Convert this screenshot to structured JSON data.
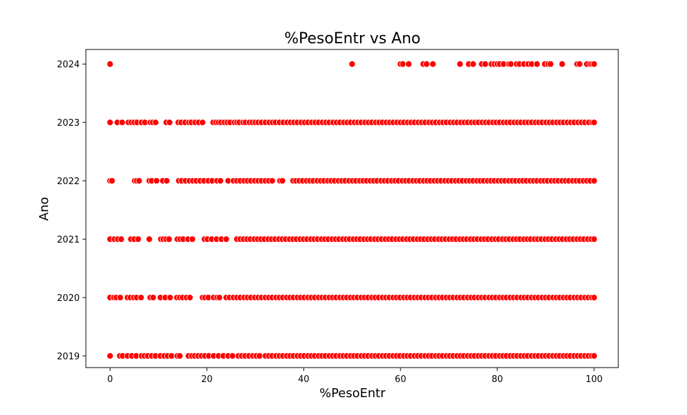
{
  "chart_data": {
    "type": "scatter",
    "title": "%PesoEntr vs Ano",
    "xlabel": "%PesoEntr",
    "ylabel": "Ano",
    "xlim": [
      -5,
      105
    ],
    "ylim": [
      2018.8,
      2024.25
    ],
    "xticks": [
      0,
      20,
      40,
      60,
      80,
      100
    ],
    "yticks": [
      2019,
      2020,
      2021,
      2022,
      2023,
      2024
    ],
    "grid": false,
    "legend": "none",
    "marker_color": "#ff0000",
    "marker_edge_color": "#ffffff",
    "series": [
      {
        "y": 2024,
        "x": [
          0,
          50,
          60,
          60.5,
          61.7,
          64.7,
          65.4,
          66.7,
          72.3,
          74.1,
          75,
          76.8,
          77.5,
          78.8,
          79.4,
          80,
          80.5,
          81.3,
          82.4,
          82.8,
          84,
          84.6,
          85.5,
          86.4,
          87.1,
          88.2,
          89.8,
          90.5,
          91,
          93.4,
          96.5,
          97,
          98.5,
          99.2,
          99.6,
          100
        ]
      },
      {
        "y": 2023,
        "x": [
          0,
          1.5,
          2.5,
          3.8,
          4.4,
          5,
          5.6,
          6.5,
          7.2,
          8.3,
          8.8,
          9.4,
          11.6,
          12.3,
          14.1,
          14.7,
          15.5,
          16.3,
          16.8,
          17.6,
          18.3,
          19.1,
          21.3,
          21.9,
          22.4,
          22.9,
          23.6,
          24.2,
          24.8,
          25.7,
          26.2,
          26.7,
          27.5,
          28,
          28.8,
          29.4,
          30,
          30.6,
          31.3,
          32.1,
          32.9,
          33.6,
          34.2,
          35,
          35.8,
          36.6,
          37.3,
          38,
          38.7,
          39.5,
          40.2,
          40.9,
          41.7,
          42.4,
          43.1,
          43.9,
          44.6,
          45.3,
          46.1,
          46.8,
          47.5,
          48.3,
          49,
          49.7,
          50.5,
          51.2,
          51.9,
          52.7,
          53.4,
          54.1,
          54.9,
          55.6,
          56.3,
          57.1,
          57.8,
          58.5,
          59.3,
          60,
          60.7,
          61.5,
          62.2,
          62.9,
          63.7,
          64.4,
          65.1,
          65.9,
          66.6,
          67.3,
          68.1,
          68.8,
          69.5,
          70.3,
          71,
          71.7,
          72.5,
          73.2,
          73.9,
          74.7,
          75.4,
          76.1,
          76.9,
          77.6,
          78.3,
          79.1,
          79.8,
          80.5,
          81.3,
          82,
          82.7,
          83.5,
          84.2,
          84.9,
          85.7,
          86.4,
          87.1,
          87.9,
          88.6,
          89.3,
          90.1,
          90.8,
          91.5,
          92.3,
          93,
          93.7,
          94.5,
          95.2,
          95.9,
          96.7,
          97.4,
          98.1,
          98.9,
          99.6,
          100
        ]
      },
      {
        "y": 2022,
        "x": [
          0,
          0.4,
          5.1,
          5.5,
          6,
          8.1,
          8.6,
          9.6,
          10.9,
          11.7,
          14.2,
          14.8,
          15.6,
          16.4,
          17.1,
          17.8,
          18.6,
          19.4,
          20.3,
          21.1,
          22.1,
          22.8,
          24.4,
          25.5,
          26.2,
          26.9,
          27.7,
          28.4,
          29.1,
          29.9,
          30.6,
          31.3,
          32.1,
          32.8,
          33.5,
          35.1,
          35.6,
          37.8,
          38.4,
          39.1,
          39.8,
          40.6,
          41.3,
          42,
          42.8,
          43.5,
          44.2,
          45,
          45.7,
          46.4,
          47.2,
          47.9,
          48.6,
          49.4,
          50.1,
          50.8,
          51.6,
          52.3,
          53,
          53.8,
          54.5,
          55.2,
          56,
          56.7,
          57.4,
          58.2,
          58.9,
          59.6,
          60.4,
          61.1,
          61.8,
          62.6,
          63.3,
          64,
          64.8,
          65.5,
          66.2,
          67,
          67.7,
          68.4,
          69.2,
          69.9,
          70.6,
          71.4,
          72.1,
          72.8,
          73.6,
          74.3,
          75,
          75.8,
          76.5,
          77.2,
          78,
          78.7,
          79.4,
          80.2,
          80.9,
          81.6,
          82.4,
          83.1,
          83.8,
          84.6,
          85.3,
          86,
          86.8,
          87.5,
          88.2,
          89,
          89.7,
          90.4,
          91.2,
          91.9,
          92.6,
          93.4,
          94.1,
          94.8,
          95.6,
          96.3,
          97,
          97.8,
          98.5,
          99.2,
          100
        ]
      },
      {
        "y": 2021,
        "x": [
          0,
          0.9,
          1.6,
          2.3,
          4.3,
          5,
          5.8,
          8.1,
          10.5,
          11,
          11.6,
          12.2,
          13.9,
          14.5,
          15.1,
          16.1,
          17,
          19.5,
          20.1,
          21,
          22,
          23,
          24,
          26.2,
          26.9,
          27.6,
          28.3,
          29,
          29.8,
          30.5,
          31.2,
          31.9,
          32.7,
          33.4,
          34.1,
          34.9,
          35.6,
          36.3,
          37.1,
          37.8,
          38.5,
          39.3,
          40,
          40.7,
          41.5,
          42.2,
          42.9,
          43.7,
          44.4,
          45.1,
          45.9,
          46.6,
          47.3,
          48.1,
          48.8,
          49.5,
          50.3,
          51,
          51.7,
          52.5,
          53.2,
          53.9,
          54.7,
          55.4,
          56.1,
          56.9,
          57.6,
          58.3,
          59.1,
          59.8,
          60.5,
          61.3,
          62,
          62.7,
          63.5,
          64.2,
          64.9,
          65.7,
          66.4,
          67.1,
          67.9,
          68.6,
          69.3,
          70.1,
          70.8,
          71.5,
          72.3,
          73,
          73.7,
          74.5,
          75.2,
          75.9,
          76.7,
          77.4,
          78.1,
          78.9,
          79.6,
          80.3,
          81.1,
          81.8,
          82.5,
          83.3,
          84,
          84.7,
          85.5,
          86.2,
          86.9,
          87.7,
          88.4,
          89.1,
          89.9,
          90.6,
          91.3,
          92.1,
          92.8,
          93.5,
          94.3,
          95,
          95.7,
          96.5,
          97.2,
          97.9,
          98.7,
          99.4,
          100
        ]
      },
      {
        "y": 2020,
        "x": [
          0,
          0.8,
          1.3,
          2.1,
          3.6,
          4.2,
          4.9,
          5.5,
          6.4,
          8.3,
          8.9,
          10.4,
          11.4,
          12.4,
          13.8,
          14.4,
          15,
          15.8,
          16.5,
          19.1,
          19.6,
          20.3,
          21.4,
          22.1,
          22.6,
          24,
          24.7,
          25.5,
          26.2,
          26.9,
          27.7,
          28.4,
          29.1,
          29.9,
          30.6,
          31.3,
          32.1,
          32.8,
          33.5,
          34.3,
          35,
          35.7,
          36.5,
          37.2,
          37.9,
          38.7,
          39.4,
          40.1,
          40.9,
          41.6,
          42.3,
          43.1,
          43.8,
          44.5,
          45.3,
          46,
          46.7,
          47.5,
          48.2,
          48.9,
          49.7,
          50.4,
          51.1,
          51.9,
          52.6,
          53.3,
          54.1,
          54.8,
          55.5,
          56.3,
          57,
          57.7,
          58.5,
          59.2,
          59.9,
          60.7,
          61.4,
          62.1,
          62.9,
          63.6,
          64.3,
          65.1,
          65.8,
          66.5,
          67.3,
          68,
          68.7,
          69.5,
          70.2,
          70.9,
          71.7,
          72.4,
          73.1,
          73.9,
          74.6,
          75.3,
          76.1,
          76.8,
          77.5,
          78.3,
          79,
          79.7,
          80.5,
          81.2,
          81.9,
          82.7,
          83.4,
          84.1,
          84.9,
          85.6,
          86.3,
          87.1,
          87.8,
          88.5,
          89.3,
          90,
          90.7,
          91.5,
          92.2,
          92.9,
          93.7,
          94.4,
          95.1,
          95.9,
          96.6,
          97.3,
          98.1,
          98.8,
          99.5,
          100
        ]
      },
      {
        "y": 2019,
        "x": [
          0,
          2,
          2.6,
          3.6,
          4.5,
          5.4,
          6.5,
          7.1,
          7.8,
          8.6,
          9.4,
          10.4,
          11.2,
          11.9,
          12.7,
          13.9,
          14.4,
          16.2,
          16.9,
          17.5,
          18.2,
          18.9,
          19.6,
          20.4,
          21.4,
          22.4,
          23.4,
          24.4,
          25.3,
          26.5,
          27.2,
          27.9,
          28.7,
          29.5,
          30.2,
          30.9,
          32.1,
          32.8,
          33.5,
          34.3,
          35,
          35.7,
          36.5,
          37.2,
          37.9,
          38.7,
          39.4,
          40.1,
          40.9,
          41.6,
          42.3,
          43.1,
          43.8,
          44.5,
          45.3,
          46,
          46.7,
          47.5,
          48.2,
          48.9,
          49.7,
          50.4,
          51.1,
          51.9,
          52.6,
          53.3,
          54.1,
          54.8,
          55.5,
          56.3,
          57,
          57.7,
          58.5,
          59.2,
          59.9,
          60.7,
          61.4,
          62.1,
          62.9,
          63.6,
          64.3,
          65.1,
          65.8,
          66.5,
          67.3,
          68,
          68.7,
          69.5,
          70.2,
          70.9,
          71.7,
          72.4,
          73.1,
          73.9,
          74.6,
          75.3,
          76.1,
          76.8,
          77.5,
          78.3,
          79,
          79.7,
          80.5,
          81.2,
          81.9,
          82.7,
          83.4,
          84.1,
          84.9,
          85.6,
          86.3,
          87.1,
          87.8,
          88.5,
          89.3,
          90,
          90.7,
          91.5,
          92.2,
          92.9,
          93.7,
          94.4,
          95.1,
          95.9,
          96.6,
          97.3,
          98.1,
          98.8,
          99.5,
          100
        ]
      }
    ]
  }
}
